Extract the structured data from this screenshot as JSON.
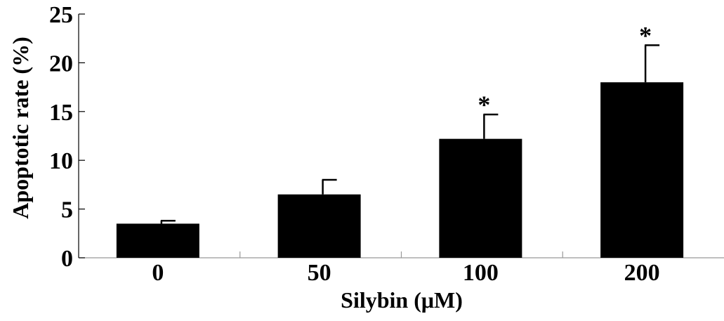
{
  "chart_data": {
    "type": "bar",
    "categories": [
      "0",
      "50",
      "100",
      "200"
    ],
    "values": [
      3.5,
      6.5,
      12.2,
      18.0
    ],
    "error_upper": [
      0.3,
      1.5,
      2.5,
      3.8
    ],
    "annotations": [
      "",
      "",
      "*",
      "*"
    ],
    "xlabel": "Silybin (μM)",
    "ylabel": "Apoptotic rate (%)",
    "ylim": [
      0,
      25
    ],
    "yticks": [
      "0",
      "5",
      "10",
      "15",
      "20",
      "25"
    ],
    "grid": false,
    "bar_color": "#000000"
  }
}
